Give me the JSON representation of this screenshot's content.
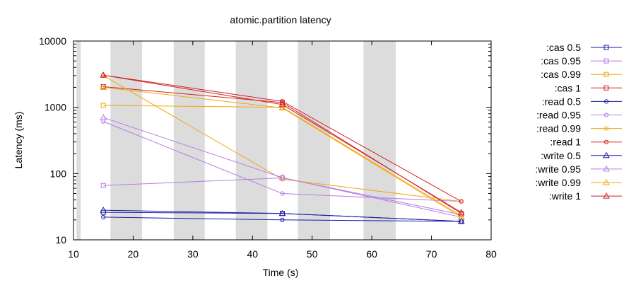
{
  "chart_data": {
    "type": "line",
    "title": "atomic.partition latency",
    "xlabel": "Time (s)",
    "ylabel": "Latency (ms)",
    "xlim": [
      10,
      80
    ],
    "ylim": [
      10,
      10000
    ],
    "yscale": "log",
    "xticks": [
      10,
      20,
      30,
      40,
      50,
      60,
      70,
      80
    ],
    "yticks": [
      10,
      100,
      1000,
      10000
    ],
    "ytick_labels": [
      "10",
      "100",
      "1000",
      "10000"
    ],
    "legend_position": "right",
    "shaded_intervals": [
      [
        10.5,
        11.2
      ],
      [
        16.2,
        21.5
      ],
      [
        26.8,
        32.0
      ],
      [
        37.2,
        42.5
      ],
      [
        47.6,
        53.0
      ],
      [
        58.6,
        64.0
      ]
    ],
    "shade_color": "#dcdcdc",
    "series": [
      {
        "name": ":cas 0.5",
        "color": "#1a1aa8",
        "marker": "square",
        "x": [
          15,
          45,
          75
        ],
        "y": [
          26,
          25,
          19
        ]
      },
      {
        "name": ":cas 0.95",
        "color": "#b57ce6",
        "marker": "square",
        "x": [
          15,
          45,
          75
        ],
        "y": [
          66,
          86,
          24
        ]
      },
      {
        "name": ":cas 0.99",
        "color": "#f0a810",
        "marker": "square",
        "x": [
          15,
          45,
          75
        ],
        "y": [
          1070,
          1000,
          23
        ]
      },
      {
        "name": ":cas 1",
        "color": "#d42020",
        "marker": "square",
        "x": [
          15,
          45,
          75
        ],
        "y": [
          2050,
          1180,
          25
        ]
      },
      {
        "name": ":read 0.5",
        "color": "#1a1aa8",
        "marker": "circle",
        "x": [
          15,
          45,
          75
        ],
        "y": [
          22,
          20,
          19
        ]
      },
      {
        "name": ":read 0.95",
        "color": "#b57ce6",
        "marker": "circle",
        "x": [
          15,
          45,
          75
        ],
        "y": [
          610,
          50,
          38
        ]
      },
      {
        "name": ":read 0.99",
        "color": "#f0a810",
        "marker": "circle",
        "x": [
          15,
          45,
          75
        ],
        "y": [
          3000,
          82,
          38
        ]
      },
      {
        "name": ":read 1",
        "color": "#d42020",
        "marker": "circle",
        "x": [
          15,
          45,
          75
        ],
        "y": [
          3050,
          1230,
          38
        ]
      },
      {
        "name": ":write 0.5",
        "color": "#1a1aa8",
        "marker": "triangle",
        "x": [
          15,
          45,
          75
        ],
        "y": [
          28,
          25,
          19
        ]
      },
      {
        "name": ":write 0.95",
        "color": "#b57ce6",
        "marker": "triangle",
        "x": [
          15,
          45,
          75
        ],
        "y": [
          700,
          87,
          22
        ]
      },
      {
        "name": ":write 0.99",
        "color": "#f0a810",
        "marker": "triangle",
        "x": [
          15,
          45,
          75
        ],
        "y": [
          2000,
          980,
          22
        ]
      },
      {
        "name": ":write 1",
        "color": "#d42020",
        "marker": "triangle",
        "x": [
          15,
          45,
          75
        ],
        "y": [
          3050,
          1100,
          26
        ]
      }
    ]
  }
}
